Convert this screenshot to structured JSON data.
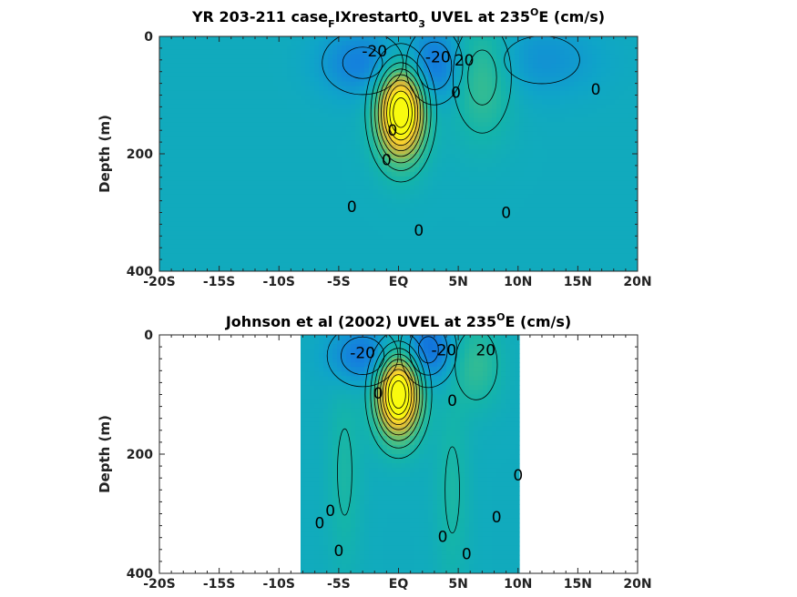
{
  "chart_data": [
    {
      "type": "contour",
      "title_parts": {
        "prefix": "YR 203-211 case",
        "sub1": "F",
        "mid": "IXrestart0",
        "sub2": "3",
        "mid2": " UVEL at 235",
        "sup": "O",
        "suffix": "E (cm/s)"
      },
      "xlabel": "",
      "ylabel": "Depth (m)",
      "xlim": [
        -20,
        20
      ],
      "ylim": [
        0,
        400
      ],
      "y_reversed": true,
      "x_ticks": [
        -20,
        -15,
        -10,
        -5,
        0,
        5,
        10,
        15,
        20
      ],
      "x_tick_labels": [
        "-20S",
        "-15S",
        "-10S",
        "-5S",
        "EQ",
        "5N",
        "10N",
        "15N",
        "20N"
      ],
      "y_ticks": [
        0,
        200,
        400
      ],
      "y_tick_labels": [
        "0",
        "200",
        "400"
      ],
      "colormap": "parula",
      "features": [
        {
          "kind": "jet",
          "name": "EUC",
          "x": 0.2,
          "depth": 130,
          "peak": 100,
          "sx": 1.4,
          "sy": 55
        },
        {
          "kind": "jet",
          "name": "SEC north",
          "x": 3.0,
          "depth": 50,
          "peak": -30,
          "sx": 1.6,
          "sy": 45
        },
        {
          "kind": "jet",
          "name": "SEC south",
          "x": -3.0,
          "depth": 45,
          "peak": -25,
          "sx": 2.5,
          "sy": 40
        },
        {
          "kind": "jet",
          "name": "NECC",
          "x": 7.0,
          "depth": 70,
          "peak": 25,
          "sx": 1.8,
          "sy": 70
        },
        {
          "kind": "jet",
          "name": "NEC",
          "x": 12.0,
          "depth": 40,
          "peak": -15,
          "sx": 3.5,
          "sy": 45
        }
      ],
      "contour_labels": [
        {
          "text": "-20",
          "x": -2.0,
          "depth": 25
        },
        {
          "text": "-20",
          "x": 3.3,
          "depth": 35
        },
        {
          "text": "20",
          "x": 5.5,
          "depth": 40
        },
        {
          "text": "0",
          "x": 4.8,
          "depth": 95
        },
        {
          "text": "0",
          "x": 16.5,
          "depth": 90
        },
        {
          "text": "0",
          "x": -0.5,
          "depth": 160
        },
        {
          "text": "0",
          "x": -1.0,
          "depth": 210
        },
        {
          "text": "0",
          "x": -3.9,
          "depth": 290
        },
        {
          "text": "0",
          "x": 1.7,
          "depth": 330
        },
        {
          "text": "0",
          "x": 9.0,
          "depth": 300
        }
      ]
    },
    {
      "type": "contour",
      "title_parts": {
        "prefix": "Johnson et al (2002) UVEL at 235",
        "sup": "O",
        "suffix": "E (cm/s)"
      },
      "xlabel": "",
      "ylabel": "Depth (m)",
      "xlim": [
        -20,
        20
      ],
      "ylim": [
        0,
        400
      ],
      "y_reversed": true,
      "x_ticks": [
        -20,
        -15,
        -10,
        -5,
        0,
        5,
        10,
        15,
        20
      ],
      "x_tick_labels": [
        "-20S",
        "-15S",
        "-10S",
        "-5S",
        "EQ",
        "5N",
        "10N",
        "15N",
        "20N"
      ],
      "y_ticks": [
        0,
        200,
        400
      ],
      "y_tick_labels": [
        "0",
        "200",
        "400"
      ],
      "colormap": "parula",
      "data_extent_x": [
        -8,
        10
      ],
      "features": [
        {
          "kind": "jet",
          "name": "EUC",
          "x": 0.0,
          "depth": 100,
          "peak": 100,
          "sx": 1.3,
          "sy": 50
        },
        {
          "kind": "jet",
          "name": "SEC north",
          "x": 2.5,
          "depth": 25,
          "peak": -35,
          "sx": 1.5,
          "sy": 40
        },
        {
          "kind": "jet",
          "name": "SEC south",
          "x": -3.0,
          "depth": 35,
          "peak": -30,
          "sx": 2.0,
          "sy": 35
        },
        {
          "kind": "jet",
          "name": "NECC",
          "x": 6.5,
          "depth": 50,
          "peak": 20,
          "sx": 1.5,
          "sy": 50
        },
        {
          "kind": "jet",
          "name": "SSCC",
          "x": -4.5,
          "depth": 230,
          "peak": 12,
          "sx": 1.0,
          "sy": 120
        },
        {
          "kind": "jet",
          "name": "NSCC",
          "x": 4.5,
          "depth": 260,
          "peak": 12,
          "sx": 1.0,
          "sy": 120
        }
      ],
      "contour_labels": [
        {
          "text": "-20",
          "x": -3.0,
          "depth": 30
        },
        {
          "text": "-20",
          "x": 3.8,
          "depth": 25
        },
        {
          "text": "20",
          "x": 7.3,
          "depth": 25
        },
        {
          "text": "0",
          "x": -1.7,
          "depth": 98
        },
        {
          "text": "0",
          "x": 4.5,
          "depth": 110
        },
        {
          "text": "0",
          "x": 10.0,
          "depth": 235
        },
        {
          "text": "0",
          "x": -6.6,
          "depth": 315
        },
        {
          "text": "0",
          "x": -5.7,
          "depth": 295
        },
        {
          "text": "0",
          "x": 8.2,
          "depth": 305
        },
        {
          "text": "0",
          "x": 3.7,
          "depth": 338
        },
        {
          "text": "0",
          "x": -5.0,
          "depth": 362
        },
        {
          "text": "0",
          "x": 5.7,
          "depth": 367
        }
      ]
    }
  ]
}
